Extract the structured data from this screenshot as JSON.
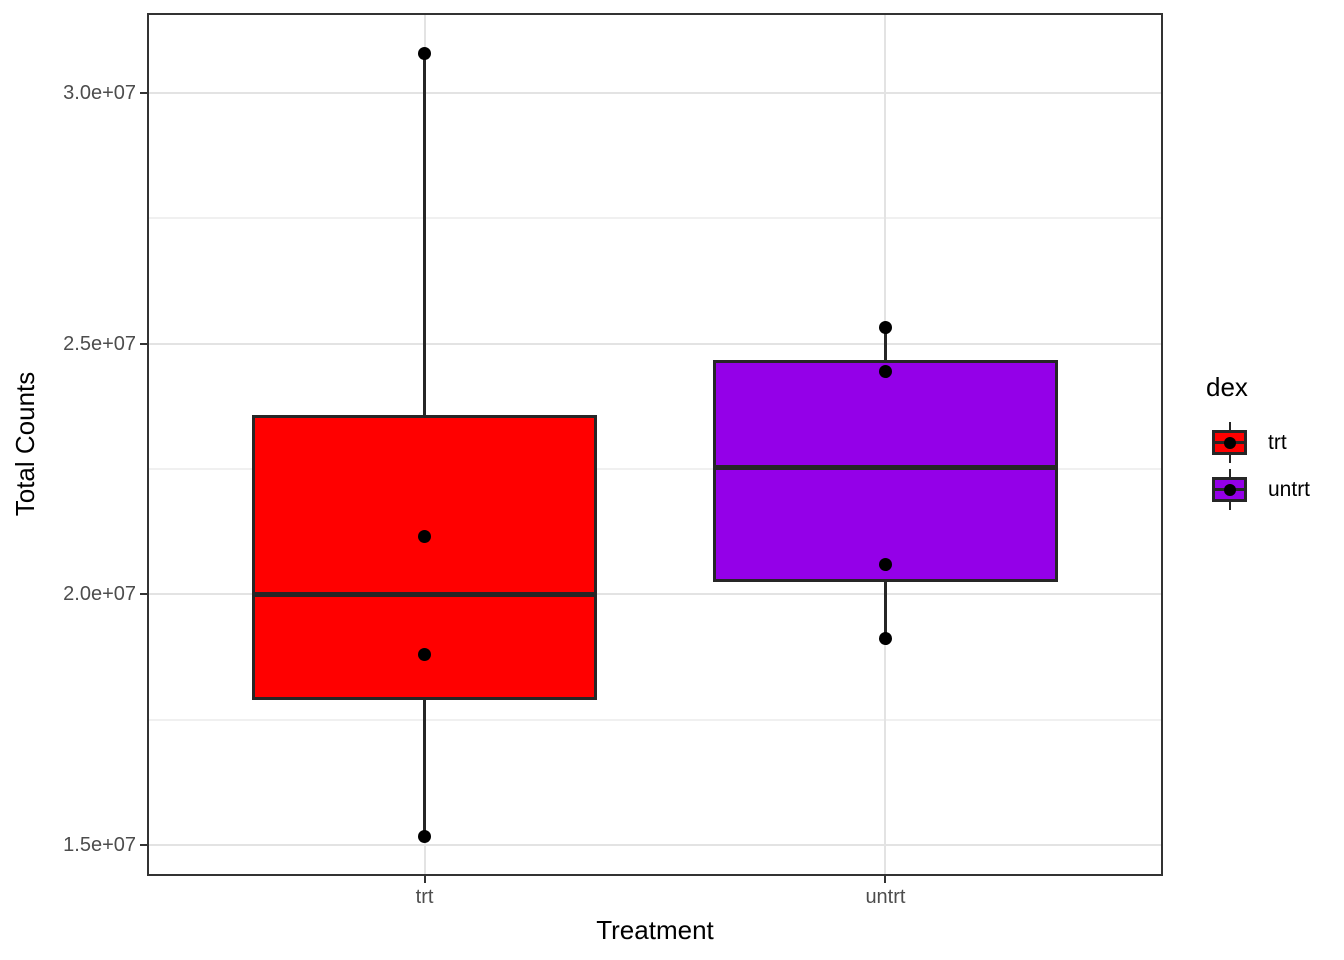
{
  "figure": {
    "background": "#ffffff"
  },
  "colors": {
    "box_outline": "#262626",
    "point": "#000000",
    "grid_major": "#e3e3e3",
    "grid_minor": "#f0f0f0",
    "panel_border": "#333333",
    "tick": "#333333",
    "tick_label": "#4d4d4d",
    "title_text": "#000000",
    "fill_trt": "#ff0000",
    "fill_untrt": "#9400e8"
  },
  "legend": {
    "title": "dex",
    "entries": [
      {
        "label": "trt",
        "color": "#ff0000"
      },
      {
        "label": "untrt",
        "color": "#9400e8"
      }
    ]
  },
  "chart_data": {
    "type": "boxplot",
    "title": "",
    "xlabel": "Treatment",
    "ylabel": "Total Counts",
    "categories": [
      "trt",
      "untrt"
    ],
    "legend_title": "dex",
    "legend_position": "right",
    "grid": true,
    "ylim": [
      14400000,
      31580000
    ],
    "y_breaks": [
      30000000,
      25000000,
      20000000,
      15000000
    ],
    "y_tick_labels": [
      "3.0e+07",
      "2.5e+07",
      "2.0e+07",
      "1.5e+07"
    ],
    "y_minor_breaks": [
      27500000,
      22500000,
      17500000
    ],
    "series": [
      {
        "name": "trt",
        "fill": "#ff0000",
        "whisker_low": 15160000,
        "q1": 17890000,
        "median": 19990000,
        "q3": 23580000,
        "whisker_high": 30800000,
        "points": [
          30800000,
          21160000,
          18790000,
          15160000
        ]
      },
      {
        "name": "untrt",
        "fill": "#9400e8",
        "whisker_low": 19110000,
        "q1": 20250000,
        "median": 22540000,
        "q3": 24670000,
        "whisker_high": 25330000,
        "points": [
          25330000,
          24440000,
          20600000,
          19110000
        ]
      }
    ]
  }
}
